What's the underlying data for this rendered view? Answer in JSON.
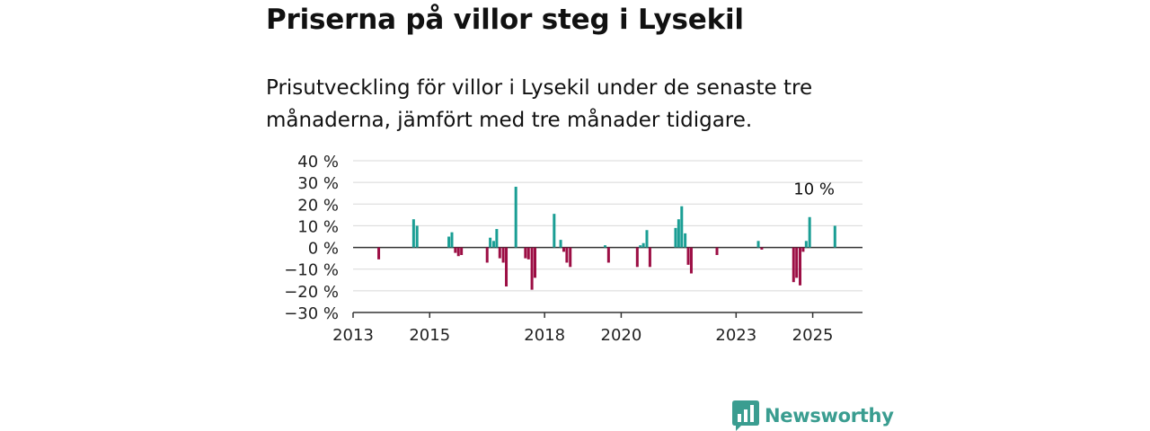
{
  "header": {
    "title": "Priserna på villor steg i Lysekil",
    "subtitle": "Prisutveckling för villor i Lysekil under de senaste tre månaderna, jämfört med tre månader tidigare."
  },
  "brand": {
    "name": "Newsworthy",
    "logo_icon": "newsworthy-bar-chart-icon",
    "color": "#3a9d90"
  },
  "chart_data": {
    "type": "bar",
    "title": "",
    "xlabel": "",
    "ylabel": "",
    "ylim": [
      -30,
      40
    ],
    "yticks": [
      40,
      30,
      20,
      10,
      0,
      -10,
      -20,
      -30
    ],
    "ytick_labels": [
      "40 %",
      "30 %",
      "20 %",
      "10 %",
      "0 %",
      "−10 %",
      "−20 %",
      "−30 %"
    ],
    "xlim": [
      2013.0,
      2026.3
    ],
    "xticks": [
      2013,
      2015,
      2018,
      2020,
      2023,
      2025
    ],
    "xtick_labels": [
      "2013",
      "2015",
      "2018",
      "2020",
      "2023",
      "2025"
    ],
    "grid": true,
    "positive_color": "#1a9e94",
    "negative_color": "#9c0e44",
    "annotation": {
      "text": "10 %",
      "x": 2025.6,
      "y": 10
    },
    "points": [
      {
        "x": 2013.67,
        "y": -5.5
      },
      {
        "x": 2014.58,
        "y": 13
      },
      {
        "x": 2014.67,
        "y": 10
      },
      {
        "x": 2015.5,
        "y": 5
      },
      {
        "x": 2015.58,
        "y": 7
      },
      {
        "x": 2015.67,
        "y": -2.5
      },
      {
        "x": 2015.75,
        "y": -4
      },
      {
        "x": 2015.83,
        "y": -3.5
      },
      {
        "x": 2016.5,
        "y": -7
      },
      {
        "x": 2016.58,
        "y": 4.5
      },
      {
        "x": 2016.67,
        "y": 3
      },
      {
        "x": 2016.75,
        "y": 8.5
      },
      {
        "x": 2016.83,
        "y": -5
      },
      {
        "x": 2016.92,
        "y": -7
      },
      {
        "x": 2017.0,
        "y": -18
      },
      {
        "x": 2017.25,
        "y": 28
      },
      {
        "x": 2017.5,
        "y": -5
      },
      {
        "x": 2017.58,
        "y": -5.5
      },
      {
        "x": 2017.67,
        "y": -19.5
      },
      {
        "x": 2017.75,
        "y": -14
      },
      {
        "x": 2018.25,
        "y": 15.5
      },
      {
        "x": 2018.42,
        "y": 3.5
      },
      {
        "x": 2018.5,
        "y": -2
      },
      {
        "x": 2018.58,
        "y": -7
      },
      {
        "x": 2018.67,
        "y": -9
      },
      {
        "x": 2019.58,
        "y": 1
      },
      {
        "x": 2019.67,
        "y": -7
      },
      {
        "x": 2020.42,
        "y": -9
      },
      {
        "x": 2020.5,
        "y": 1
      },
      {
        "x": 2020.58,
        "y": 2
      },
      {
        "x": 2020.67,
        "y": 8
      },
      {
        "x": 2020.75,
        "y": -9
      },
      {
        "x": 2021.42,
        "y": 9
      },
      {
        "x": 2021.5,
        "y": 13
      },
      {
        "x": 2021.58,
        "y": 19
      },
      {
        "x": 2021.67,
        "y": 6.5
      },
      {
        "x": 2021.75,
        "y": -8
      },
      {
        "x": 2021.83,
        "y": -12
      },
      {
        "x": 2022.5,
        "y": -3.5
      },
      {
        "x": 2023.58,
        "y": 3
      },
      {
        "x": 2023.67,
        "y": -1
      },
      {
        "x": 2024.5,
        "y": -16
      },
      {
        "x": 2024.58,
        "y": -14
      },
      {
        "x": 2024.67,
        "y": -17.5
      },
      {
        "x": 2024.75,
        "y": -2
      },
      {
        "x": 2024.83,
        "y": 3
      },
      {
        "x": 2024.92,
        "y": 14
      },
      {
        "x": 2025.58,
        "y": 10
      }
    ]
  }
}
